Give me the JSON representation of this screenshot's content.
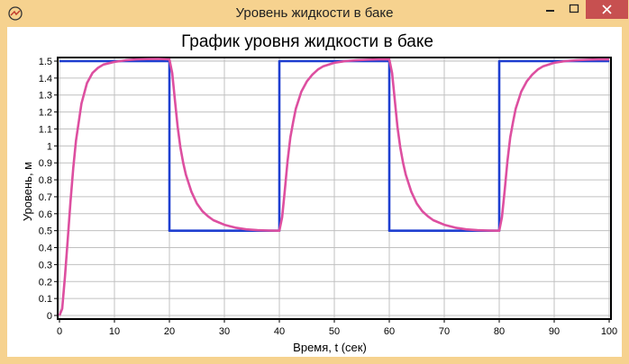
{
  "window": {
    "title": "Уровень жидкости в баке",
    "icons": {
      "app": "app-logo-icon",
      "minimize": "minimize-icon",
      "maximize": "maximize-icon",
      "close": "close-icon"
    }
  },
  "chart_data": {
    "type": "line",
    "title": "График уровня жидкости в баке",
    "xlabel": "Время, t (сек)",
    "ylabel": "Уровень, м",
    "xlim": [
      0,
      100
    ],
    "ylim": [
      0,
      1.5
    ],
    "x_ticks": [
      "0",
      "10",
      "20",
      "30",
      "40",
      "50",
      "60",
      "70",
      "80",
      "90",
      "100"
    ],
    "y_ticks": [
      "0",
      "0.1",
      "0.2",
      "0.3",
      "0.4",
      "0.5",
      "0.6",
      "0.7",
      "0.8",
      "0.9",
      "1",
      "1.1",
      "1.2",
      "1.3",
      "1.4",
      "1.5"
    ],
    "grid": true,
    "series": [
      {
        "color": "#1f3fd1",
        "x": [
          0,
          20,
          20,
          40,
          40,
          60,
          60,
          80,
          80,
          100
        ],
        "y": [
          1.5,
          1.5,
          0.5,
          0.5,
          1.5,
          1.5,
          0.5,
          0.5,
          1.5,
          1.5
        ]
      },
      {
        "color": "#dd4fa0",
        "x": [
          0,
          0.5,
          1,
          1.5,
          2,
          2.5,
          3,
          4,
          5,
          6,
          7,
          8,
          10,
          12,
          14,
          16,
          18,
          20,
          20.5,
          21,
          21.5,
          22,
          22.5,
          23,
          24,
          25,
          26,
          27,
          28,
          30,
          32,
          34,
          36,
          38,
          40,
          40.5,
          41,
          41.5,
          42,
          42.5,
          43,
          44,
          45,
          46,
          47,
          48,
          50,
          52,
          54,
          56,
          58,
          60,
          60.5,
          61,
          61.5,
          62,
          62.5,
          63,
          64,
          65,
          66,
          67,
          68,
          70,
          72,
          74,
          76,
          78,
          80,
          80.5,
          81,
          81.5,
          82,
          82.5,
          83,
          84,
          85,
          86,
          87,
          88,
          90,
          92,
          94,
          96,
          98,
          100
        ],
        "y": [
          0,
          0.04,
          0.23,
          0.45,
          0.67,
          0.87,
          1.03,
          1.25,
          1.37,
          1.43,
          1.46,
          1.48,
          1.495,
          1.505,
          1.51,
          1.512,
          1.513,
          1.51,
          1.43,
          1.27,
          1.11,
          0.99,
          0.9,
          0.83,
          0.73,
          0.66,
          0.615,
          0.585,
          0.562,
          0.535,
          0.518,
          0.508,
          0.503,
          0.501,
          0.5,
          0.58,
          0.74,
          0.91,
          1.05,
          1.14,
          1.22,
          1.32,
          1.38,
          1.42,
          1.45,
          1.47,
          1.49,
          1.5,
          1.505,
          1.508,
          1.51,
          1.51,
          1.43,
          1.27,
          1.11,
          0.99,
          0.9,
          0.83,
          0.73,
          0.66,
          0.615,
          0.585,
          0.562,
          0.535,
          0.518,
          0.508,
          0.503,
          0.501,
          0.5,
          0.58,
          0.74,
          0.91,
          1.05,
          1.14,
          1.22,
          1.32,
          1.38,
          1.42,
          1.45,
          1.47,
          1.49,
          1.5,
          1.505,
          1.508,
          1.51,
          1.51
        ]
      }
    ]
  }
}
